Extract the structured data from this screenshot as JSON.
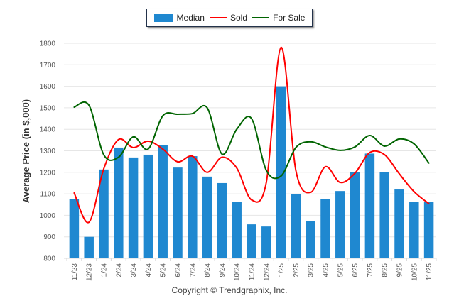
{
  "chart_data": {
    "type": "bar",
    "title": "",
    "xlabel": "",
    "ylabel": "Average Price (in $,000)",
    "ylim": [
      800,
      1800
    ],
    "yticks": [
      800,
      900,
      1000,
      1100,
      1200,
      1300,
      1400,
      1500,
      1600,
      1700,
      1800
    ],
    "grid": true,
    "legend_position": "top-center",
    "categories": [
      "11/23",
      "12/23",
      "1/24",
      "2/24",
      "3/24",
      "4/24",
      "5/24",
      "6/24",
      "7/24",
      "8/24",
      "9/24",
      "10/24",
      "11/24",
      "12/24",
      "1/25",
      "2/25",
      "3/25",
      "4/25",
      "5/25",
      "6/25",
      "7/25",
      "8/25",
      "9/25",
      "10/25",
      "11/25"
    ],
    "series": [
      {
        "name": "Median",
        "kind": "bar",
        "color": "#1f88d0",
        "values": [
          1074,
          900,
          1213,
          1315,
          1269,
          1282,
          1325,
          1222,
          1275,
          1180,
          1150,
          1064,
          958,
          948,
          1600,
          1100,
          972,
          1074,
          1113,
          1200,
          1287,
          1200,
          1120,
          1064,
          1064
        ]
      },
      {
        "name": "Sold",
        "kind": "line",
        "color": "#ff0000",
        "values": [
          1104,
          968,
          1216,
          1352,
          1315,
          1345,
          1308,
          1249,
          1275,
          1200,
          1270,
          1220,
          1072,
          1153,
          1781,
          1209,
          1107,
          1226,
          1153,
          1196,
          1292,
          1282,
          1193,
          1110,
          1054
        ]
      },
      {
        "name": "For Sale",
        "kind": "line",
        "color": "#006400",
        "values": [
          1503,
          1512,
          1282,
          1270,
          1365,
          1308,
          1463,
          1470,
          1473,
          1500,
          1285,
          1400,
          1450,
          1209,
          1183,
          1315,
          1342,
          1318,
          1302,
          1318,
          1371,
          1322,
          1355,
          1332,
          1243
        ]
      }
    ]
  },
  "footer": {
    "copyright": "Copyright © Trendgraphix, Inc."
  }
}
